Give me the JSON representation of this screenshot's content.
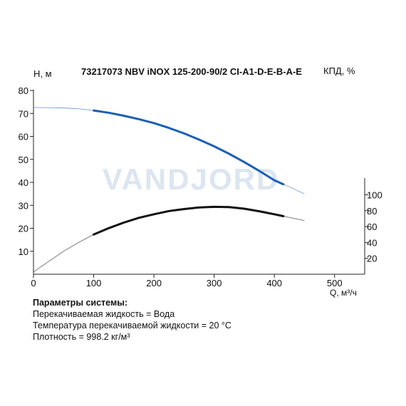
{
  "chart_data": {
    "type": "line",
    "title": "73217073 NBV iNOX 125-200-90/2 CI-A1-D-E-B-A-E",
    "watermark": "VANDJORD",
    "xlabel": "Q, м³/ч",
    "ylabel_left": "Н, м",
    "ylabel_right": "КПД, %",
    "xlim": [
      0,
      550
    ],
    "ylim_left": [
      0,
      80
    ],
    "ylim_right": [
      0,
      130
    ],
    "x_ticks": [
      0,
      100,
      200,
      300,
      400,
      500
    ],
    "y_left_ticks": [
      10,
      20,
      30,
      40,
      50,
      60,
      70,
      80
    ],
    "y_right_ticks": [
      20,
      40,
      60,
      80,
      100
    ],
    "grid": false,
    "series": [
      {
        "axis": "left",
        "color": "#1a5fb4",
        "x": [
          0,
          25,
          50,
          75,
          100,
          125,
          150,
          175,
          200,
          225,
          250,
          275,
          300,
          325,
          350,
          375,
          400,
          425,
          450
        ],
        "values": [
          72.6,
          72.5,
          72.4,
          72.0,
          71.3,
          70.3,
          69.0,
          67.5,
          65.8,
          63.7,
          61.3,
          58.6,
          55.7,
          52.4,
          48.8,
          45.0,
          40.9,
          38.0,
          35.0
        ],
        "operating_range": [
          100,
          415
        ]
      },
      {
        "axis": "right",
        "color": "#111111",
        "x": [
          0,
          25,
          50,
          75,
          100,
          125,
          150,
          175,
          200,
          225,
          250,
          275,
          300,
          325,
          350,
          375,
          400,
          425,
          450
        ],
        "values": [
          3,
          16,
          29,
          40,
          50,
          58,
          65,
          71,
          75.5,
          79.5,
          82,
          84,
          84.8,
          84.5,
          82.5,
          79.3,
          75.5,
          71.5,
          67.5
        ],
        "operating_range": [
          100,
          415
        ]
      }
    ]
  },
  "params": {
    "header": "Параметры системы:",
    "lines": [
      "Перекачиваемая жидкость = Вода",
      "Температура перекачиваемой жидкости = 20 °C",
      "Плотность = 998.2 кг/м³"
    ]
  }
}
